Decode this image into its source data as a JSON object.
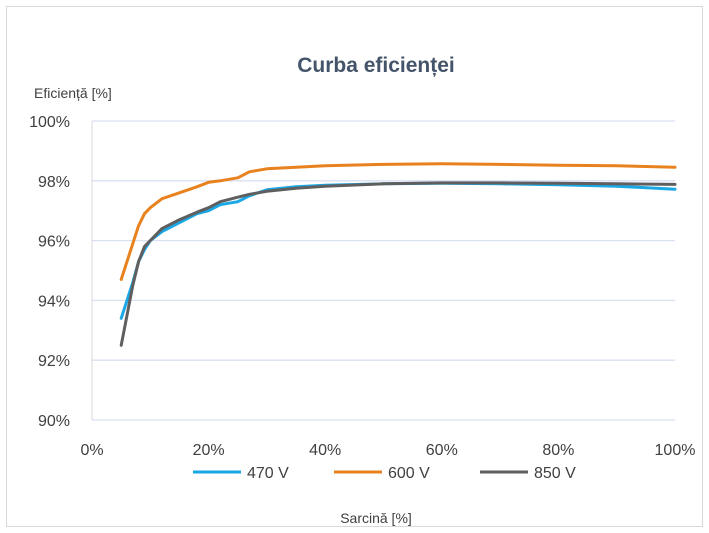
{
  "chart_data": {
    "type": "line",
    "title": "Curba eficienței",
    "ylabel": "Eficiență [%]",
    "xlabel": "Sarcină [%]",
    "xlim": [
      0,
      100
    ],
    "ylim": [
      90,
      100
    ],
    "x_ticks": [
      "0%",
      "20%",
      "40%",
      "60%",
      "80%",
      "100%"
    ],
    "y_ticks": [
      "90%",
      "92%",
      "94%",
      "96%",
      "98%",
      "100%"
    ],
    "grid": true,
    "legend_position": "bottom",
    "series": [
      {
        "name": "470 V",
        "color": "#1aa7e6",
        "x": [
          5,
          7,
          8,
          9,
          10,
          12,
          15,
          18,
          20,
          22,
          25,
          27,
          30,
          35,
          40,
          50,
          60,
          70,
          80,
          90,
          100
        ],
        "y": [
          93.4,
          94.6,
          95.3,
          95.7,
          96.0,
          96.3,
          96.6,
          96.9,
          97.0,
          97.2,
          97.3,
          97.5,
          97.7,
          97.8,
          97.85,
          97.9,
          97.92,
          97.9,
          97.87,
          97.82,
          97.72
        ]
      },
      {
        "name": "600 V",
        "color": "#e8821e",
        "x": [
          5,
          7,
          8,
          9,
          10,
          12,
          15,
          18,
          20,
          22,
          25,
          27,
          30,
          35,
          40,
          50,
          60,
          70,
          80,
          90,
          100
        ],
        "y": [
          94.7,
          95.9,
          96.5,
          96.9,
          97.1,
          97.4,
          97.6,
          97.8,
          97.95,
          98.0,
          98.1,
          98.3,
          98.4,
          98.45,
          98.5,
          98.55,
          98.57,
          98.55,
          98.52,
          98.5,
          98.45
        ]
      },
      {
        "name": "850 V",
        "color": "#5f5f5f",
        "x": [
          5,
          7,
          8,
          9,
          10,
          12,
          15,
          18,
          20,
          22,
          25,
          27,
          30,
          35,
          40,
          50,
          60,
          70,
          80,
          90,
          100
        ],
        "y": [
          92.5,
          94.5,
          95.3,
          95.8,
          96.0,
          96.4,
          96.7,
          96.95,
          97.1,
          97.3,
          97.45,
          97.55,
          97.65,
          97.75,
          97.82,
          97.9,
          97.93,
          97.93,
          97.92,
          97.9,
          97.88
        ]
      }
    ]
  }
}
